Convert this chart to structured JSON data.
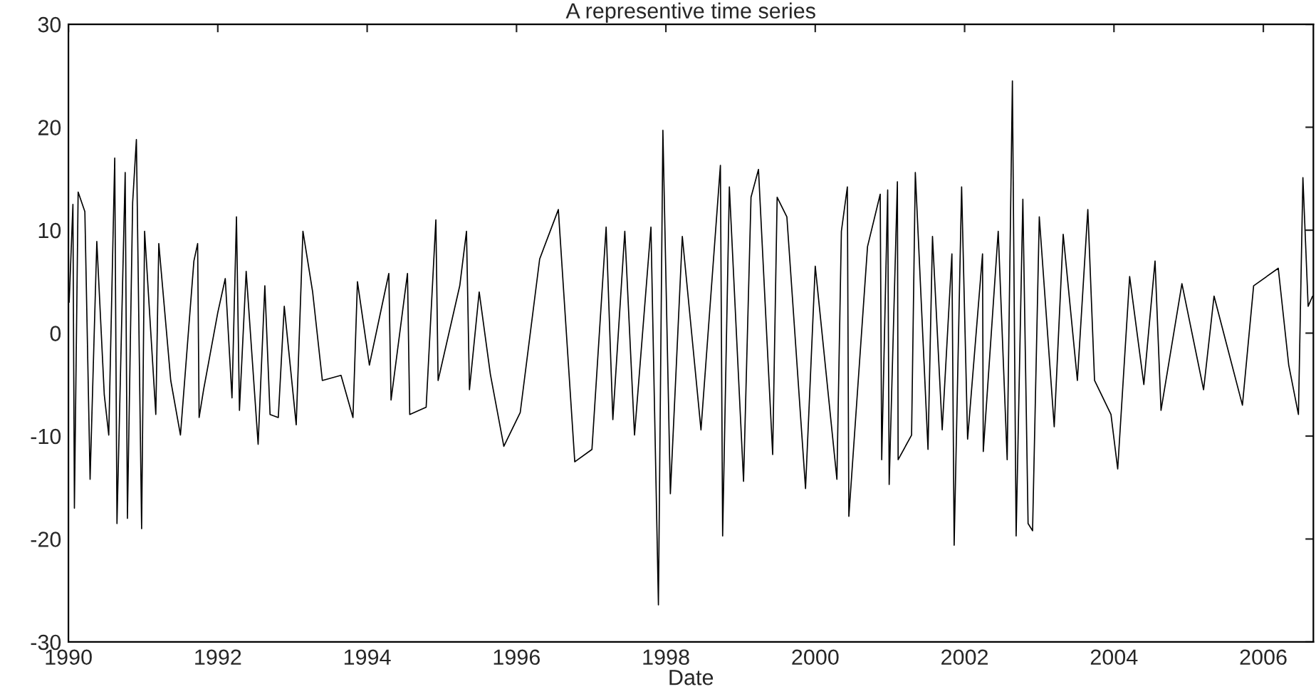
{
  "chart_data": {
    "type": "line",
    "title": "A representive time series",
    "xlabel": "Date",
    "xlim": [
      1990,
      2006.67
    ],
    "xticks": [
      1990,
      1992,
      1994,
      1996,
      1998,
      2000,
      2002,
      2004,
      2006
    ],
    "ylim": [
      -30,
      30
    ],
    "yticks": [
      -30,
      -20,
      -10,
      0,
      10,
      20,
      30
    ],
    "grid": false,
    "marker": "none",
    "line_style": "solid",
    "series": [
      {
        "color": "#000000",
        "x": [
          1990.01,
          1990.06,
          1990.08,
          1990.13,
          1990.22,
          1990.29,
          1990.38,
          1990.48,
          1990.54,
          1990.62,
          1990.65,
          1990.76,
          1990.79,
          1990.86,
          1990.91,
          1990.98,
          1991.02,
          1991.17,
          1991.21,
          1991.37,
          1991.5,
          1991.68,
          1991.73,
          1991.75,
          1991.81,
          1992.0,
          1992.1,
          1992.19,
          1992.25,
          1992.29,
          1992.38,
          1992.54,
          1992.63,
          1992.7,
          1992.81,
          1992.89,
          1993.05,
          1993.14,
          1993.27,
          1993.4,
          1993.65,
          1993.81,
          1993.87,
          1994.03,
          1994.29,
          1994.32,
          1994.54,
          1994.57,
          1994.79,
          1994.92,
          1994.95,
          1995.24,
          1995.33,
          1995.37,
          1995.5,
          1995.65,
          1995.83,
          1996.05,
          1996.31,
          1996.56,
          1996.78,
          1997.01,
          1997.2,
          1997.29,
          1997.45,
          1997.58,
          1997.8,
          1997.9,
          1997.96,
          1998.06,
          1998.22,
          1998.47,
          1998.73,
          1998.76,
          1998.85,
          1999.04,
          1999.14,
          1999.24,
          1999.43,
          1999.49,
          1999.62,
          1999.87,
          2000.0,
          2000.29,
          2000.35,
          2000.43,
          2000.45,
          2000.7,
          2000.87,
          2000.89,
          2000.97,
          2000.99,
          2001.1,
          2001.11,
          2001.29,
          2001.34,
          2001.51,
          2001.57,
          2001.7,
          2001.83,
          2001.86,
          2001.96,
          2002.04,
          2002.24,
          2002.25,
          2002.45,
          2002.57,
          2002.64,
          2002.69,
          2002.78,
          2002.85,
          2002.91,
          2003.0,
          2003.2,
          2003.32,
          2003.51,
          2003.65,
          2003.74,
          2003.96,
          2004.05,
          2004.21,
          2004.4,
          2004.55,
          2004.63,
          2004.91,
          2005.2,
          2005.34,
          2005.72,
          2005.87,
          2006.2,
          2006.34,
          2006.47,
          2006.53,
          2006.6,
          2006.66
        ],
        "values": [
          3,
          12.5,
          -17,
          13.7,
          11.8,
          -14.2,
          8.9,
          -6,
          -9.9,
          17,
          -18.5,
          15.6,
          -18,
          12.7,
          18.8,
          -19,
          9.9,
          -7.9,
          8.7,
          -4.6,
          -9.9,
          7,
          8.7,
          -8.2,
          -5.5,
          2,
          5.3,
          -6.3,
          11.3,
          -7.5,
          6,
          -10.8,
          4.6,
          -7.9,
          -8.2,
          2.6,
          -8.9,
          9.9,
          4,
          -4.6,
          -4.1,
          -8.2,
          5,
          -3.1,
          5.8,
          -6.5,
          5.8,
          -7.9,
          -7.2,
          11,
          -4.6,
          4.6,
          9.9,
          -5.5,
          4,
          -4,
          -11,
          -7.7,
          7.2,
          12,
          -12.5,
          -11.3,
          10.3,
          -8.4,
          9.9,
          -9.9,
          10.3,
          -26.4,
          19.7,
          -15.6,
          9.4,
          -9.4,
          16.3,
          -19.7,
          14.2,
          -14.4,
          13.2,
          15.9,
          -11.8,
          13.2,
          11.3,
          -15.1,
          6.5,
          -14.2,
          9.9,
          14.2,
          -17.8,
          8.4,
          13.5,
          -12.3,
          13.9,
          -14.7,
          14.7,
          -12.3,
          -9.9,
          15.6,
          -11.3,
          9.4,
          -9.4,
          7.7,
          -20.6,
          14.2,
          -10.3,
          7.7,
          -11.5,
          9.9,
          -12.3,
          24.5,
          -19.7,
          13,
          -18.5,
          -19.2,
          11.3,
          -9.1,
          9.6,
          -4.6,
          12,
          -4.6,
          -7.9,
          -13.2,
          5.5,
          -5,
          7,
          -7.5,
          4.8,
          -5.5,
          3.6,
          -7,
          4.6,
          6.3,
          -3.1,
          -7.9,
          15.1,
          2.6,
          3.6
        ]
      }
    ]
  }
}
